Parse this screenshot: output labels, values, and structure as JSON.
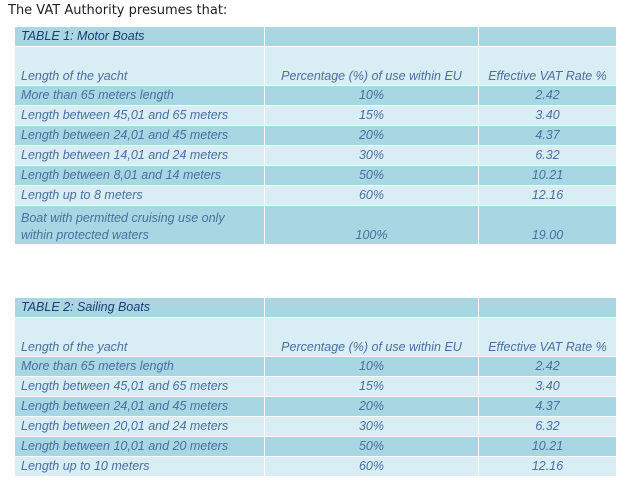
{
  "intro": "The VAT Authority presumes that:",
  "table1": {
    "title": "TABLE 1: Motor Boats",
    "headers": [
      "Length of the yacht",
      "Percentage (%) of use within EU",
      "Effective VAT Rate %"
    ],
    "rows": [
      [
        "More than 65 meters length",
        "10%",
        "2.42"
      ],
      [
        "Length between 45,01 and 65 meters",
        "15%",
        "3.40"
      ],
      [
        "Length between 24,01 and  45 meters",
        "20%",
        "4.37"
      ],
      [
        "Length between 14,01 and 24 meters",
        "30%",
        "6.32"
      ],
      [
        "Length between 8,01 and 14 meters",
        "50%",
        "10.21"
      ],
      [
        "Length up to 8 meters",
        "60%",
        "12.16"
      ],
      [
        "Boat with permitted cruising use only within protected waters",
        "100%",
        "19.00"
      ]
    ]
  },
  "table2": {
    "title": "TABLE 2: Sailing  Boats",
    "headers": [
      "Length of the yacht",
      "Percentage (%) of use within EU",
      "Effective VAT Rate %"
    ],
    "rows": [
      [
        "More than 65 meters length",
        "10%",
        "2.42"
      ],
      [
        "Length between 45,01 and 65 meters",
        "15%",
        "3.40"
      ],
      [
        "Length between 24,01 and  45 meters",
        "20%",
        "4.37"
      ],
      [
        "Length between 20,01 and 24 meters",
        "30%",
        "6.32"
      ],
      [
        "Length between 10,01 and 20 meters",
        "50%",
        "10.21"
      ],
      [
        "Length up to 10 meters",
        "60%",
        "12.16"
      ]
    ]
  }
}
